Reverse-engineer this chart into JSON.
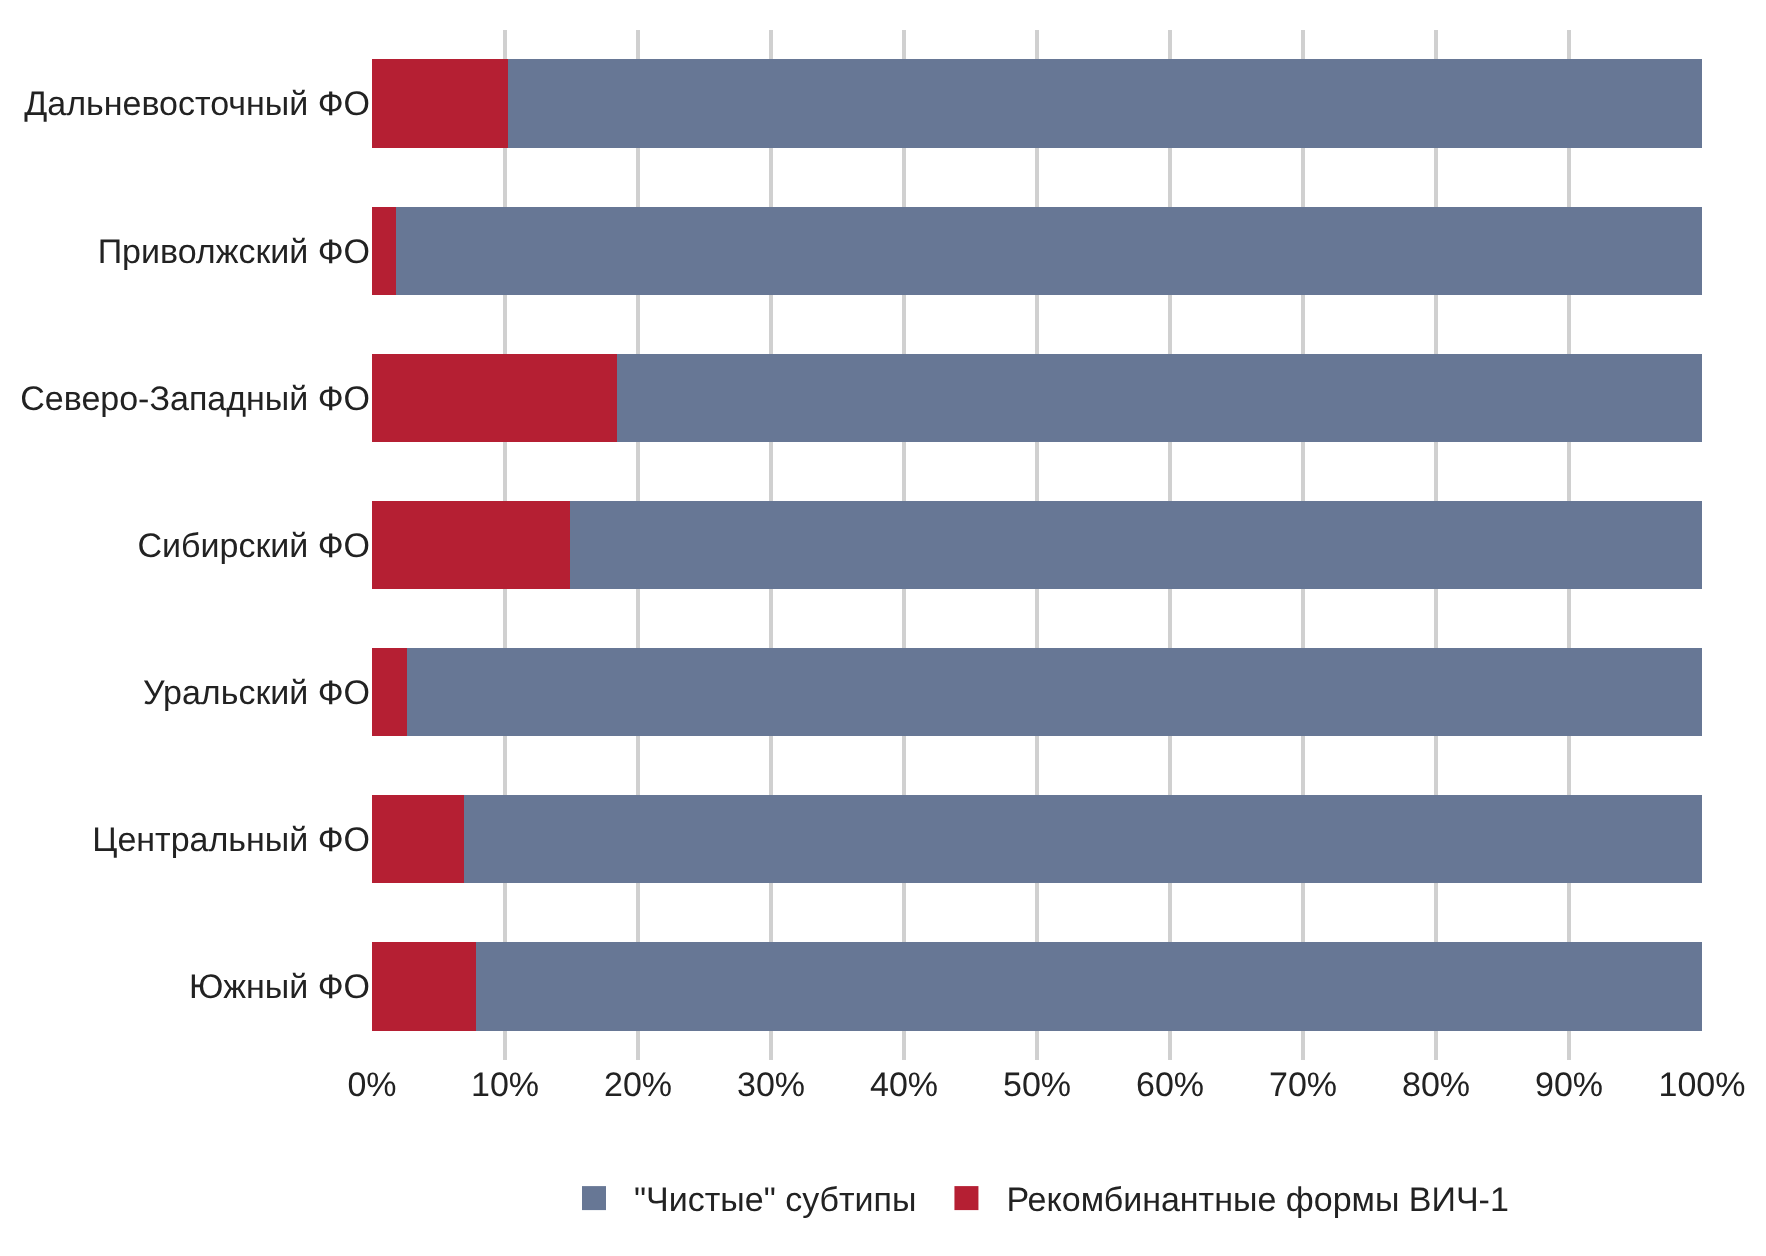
{
  "chart_data": {
    "type": "bar",
    "orientation": "horizontal",
    "stacked": true,
    "categories": [
      "Дальневосточный ФО",
      "Приволжский ФО",
      "Северо-Западный ФО",
      "Сибирский ФО",
      "Уральский ФО",
      "Центральный ФО",
      "Южный ФО"
    ],
    "series": [
      {
        "name": "Рекомбинантные формы ВИЧ-1",
        "color": "#b51f33",
        "values": [
          10.2,
          1.8,
          18.4,
          14.9,
          2.6,
          6.9,
          7.8
        ]
      },
      {
        "name": "\"Чистые\" субтипы",
        "color": "#677795",
        "values": [
          89.8,
          98.2,
          81.6,
          85.1,
          97.4,
          93.1,
          92.2
        ]
      }
    ],
    "xlim": [
      0,
      100
    ],
    "xticks": [
      {
        "value": 0,
        "label": "0%"
      },
      {
        "value": 10,
        "label": "10%"
      },
      {
        "value": 20,
        "label": "20%"
      },
      {
        "value": 30,
        "label": "30%"
      },
      {
        "value": 40,
        "label": "40%"
      },
      {
        "value": 50,
        "label": "50%"
      },
      {
        "value": 60,
        "label": "60%"
      },
      {
        "value": 70,
        "label": "70%"
      },
      {
        "value": 80,
        "label": "80%"
      },
      {
        "value": 90,
        "label": "90%"
      },
      {
        "value": 100,
        "label": "100%"
      }
    ],
    "grid": "x",
    "legend": "bottom"
  }
}
